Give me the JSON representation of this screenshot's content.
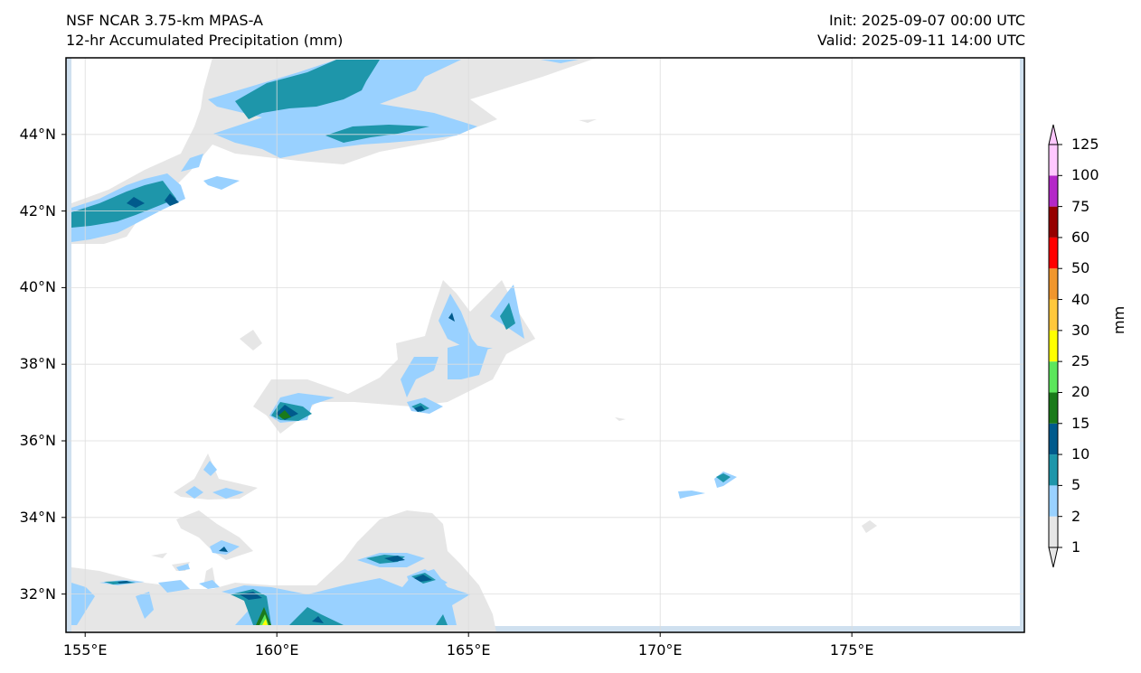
{
  "header": {
    "model": "NSF NCAR 3.75-km MPAS-A",
    "field": "12-hr Accumulated Precipitation (mm)",
    "init": "Init: 2025-09-07 00:00 UTC",
    "valid": "Valid: 2025-09-11 14:00 UTC"
  },
  "map": {
    "lat_labels": [
      "44°N",
      "42°N",
      "40°N",
      "38°N",
      "36°N",
      "34°N",
      "32°N"
    ],
    "lon_labels": [
      "155°E",
      "160°E",
      "165°E",
      "170°E",
      "175°E"
    ],
    "lon_range": [
      154.5,
      179.5
    ],
    "lat_range": [
      31,
      46
    ]
  },
  "colorbar": {
    "unit": "mm",
    "levels": [
      "1",
      "2",
      "5",
      "10",
      "15",
      "20",
      "25",
      "30",
      "40",
      "50",
      "60",
      "75",
      "100",
      "125"
    ],
    "colors": [
      "#e6e6e6",
      "#99d1ff",
      "#1e96aa",
      "#005a8c",
      "#1a7a1a",
      "#5ce65c",
      "#ffff00",
      "#ffc83c",
      "#f0962d",
      "#ff0000",
      "#960000",
      "#b428c8",
      "#ffc8ff"
    ]
  }
}
